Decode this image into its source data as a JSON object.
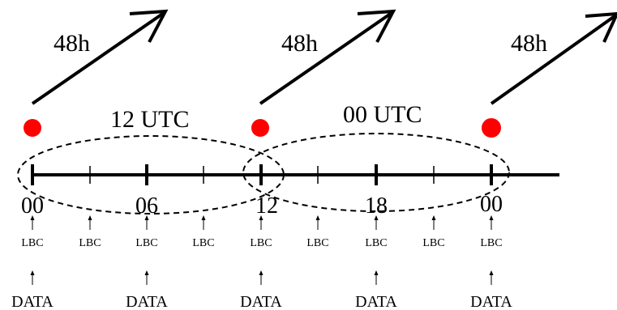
{
  "forecasts": [
    {
      "label": "48h"
    },
    {
      "label": "48h"
    },
    {
      "label": "48h"
    }
  ],
  "windows": [
    {
      "label": "12 UTC"
    },
    {
      "label": "00 UTC"
    }
  ],
  "timeline": {
    "major_labels": [
      "00",
      "06",
      "12",
      "18",
      "00"
    ],
    "lbc_label": "LBC",
    "data_label": "DATA"
  },
  "colors": {
    "init_dot": "#ff0000",
    "line": "#000000"
  }
}
